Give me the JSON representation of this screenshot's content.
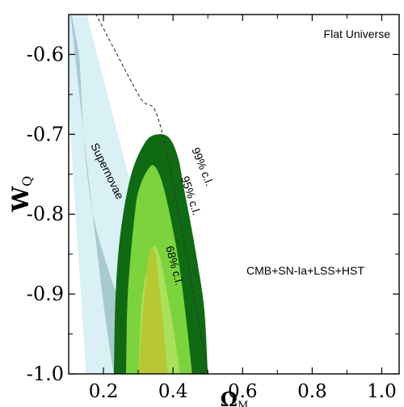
{
  "chart_data": {
    "type": "contour",
    "xlabel": "Ω",
    "xlabel_sub": "M",
    "ylabel": "W",
    "ylabel_sub": "Q",
    "xlim": [
      0.1,
      1.05
    ],
    "ylim": [
      -1.0,
      -0.55
    ],
    "xticks": [
      0.2,
      0.4,
      0.6,
      0.8,
      1.0
    ],
    "xtick_labels": [
      "0.2",
      "0.4",
      "0.6",
      "0.8",
      "1.0"
    ],
    "yticks": [
      -1.0,
      -0.9,
      -0.8,
      -0.7,
      -0.6
    ],
    "ytick_labels": [
      "-1.0",
      "-0.9",
      "-0.8",
      "-0.7",
      "-0.6"
    ],
    "annotations": {
      "flat": "Flat Universe",
      "combo": "CMB+SN-Ia+LSS+HST",
      "supernovae": "Supernovae",
      "cl99": "99% c.l.",
      "cl95": "95% c.l.",
      "cl68": "68% c.l."
    },
    "regions": [
      {
        "name": "supernovae-outer",
        "color": "#d9f0f5",
        "points": [
          [
            0.08,
            -0.53
          ],
          [
            0.14,
            -0.53
          ],
          [
            0.42,
            -1.0
          ],
          [
            0.15,
            -1.0
          ]
        ]
      },
      {
        "name": "supernovae-inner",
        "color": "#a9c9d1",
        "points": [
          [
            0.1,
            -0.53
          ],
          [
            0.23,
            -1.0
          ],
          [
            0.31,
            -1.0
          ],
          [
            0.17,
            -0.8
          ],
          [
            0.13,
            -0.6
          ]
        ]
      },
      {
        "name": "combined-99",
        "color": "#0f6b12",
        "points": [
          [
            0.23,
            -1.0
          ],
          [
            0.235,
            -0.9
          ],
          [
            0.25,
            -0.82
          ],
          [
            0.28,
            -0.75
          ],
          [
            0.32,
            -0.71
          ],
          [
            0.355,
            -0.7
          ],
          [
            0.39,
            -0.705
          ],
          [
            0.415,
            -0.73
          ],
          [
            0.43,
            -0.765
          ],
          [
            0.45,
            -0.81
          ],
          [
            0.47,
            -0.86
          ],
          [
            0.49,
            -0.92
          ],
          [
            0.5,
            -1.0
          ]
        ]
      },
      {
        "name": "combined-95",
        "color": "#7bd43c",
        "points": [
          [
            0.265,
            -1.0
          ],
          [
            0.27,
            -0.9
          ],
          [
            0.29,
            -0.8
          ],
          [
            0.305,
            -0.765
          ],
          [
            0.335,
            -0.74
          ],
          [
            0.355,
            -0.745
          ],
          [
            0.375,
            -0.77
          ],
          [
            0.4,
            -0.82
          ],
          [
            0.42,
            -0.87
          ],
          [
            0.44,
            -0.94
          ],
          [
            0.455,
            -1.0
          ]
        ]
      },
      {
        "name": "combined-68",
        "color": "#a9e05c",
        "points": [
          [
            0.3,
            -1.0
          ],
          [
            0.31,
            -0.91
          ],
          [
            0.33,
            -0.86
          ],
          [
            0.345,
            -0.84
          ],
          [
            0.36,
            -0.85
          ],
          [
            0.375,
            -0.88
          ],
          [
            0.4,
            -0.94
          ],
          [
            0.42,
            -1.0
          ]
        ]
      },
      {
        "name": "overlap",
        "color": "#b8c832",
        "points": [
          [
            0.3,
            -1.0
          ],
          [
            0.32,
            -0.89
          ],
          [
            0.335,
            -0.845
          ],
          [
            0.35,
            -0.85
          ],
          [
            0.355,
            -0.87
          ],
          [
            0.37,
            -0.93
          ],
          [
            0.385,
            -1.0
          ]
        ]
      }
    ],
    "dashed_curve": [
      [
        0.155,
        -0.53
      ],
      [
        0.3,
        -0.65
      ],
      [
        0.37,
        -0.7
      ],
      [
        0.5,
        -1.0
      ]
    ],
    "colors": {
      "cl99": "#0f6b12",
      "cl95": "#7bd43c",
      "cl68": "#a9e05c",
      "supernovae_outer": "#d9f0f5",
      "supernovae_inner": "#a9c9d1"
    }
  }
}
